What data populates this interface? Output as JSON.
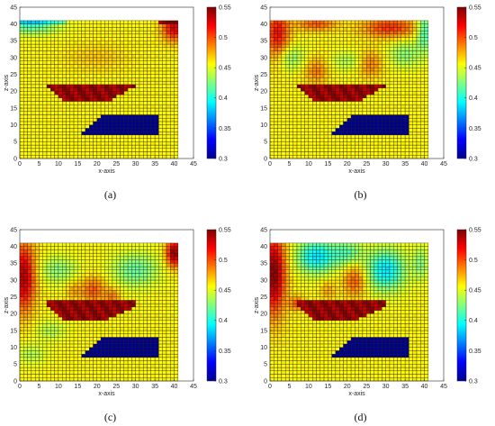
{
  "colors": {
    "high_block": "#d8120f",
    "low_block": "#0a22ee",
    "background": "#f2c61a",
    "grid_line": "#1a1a1a",
    "axis": "#262626"
  },
  "chart_data": [
    {
      "type": "heatmap",
      "caption": "(a)",
      "variant": 0,
      "xlabel": "x-axis",
      "ylabel": "z-axis",
      "xlim": [
        0,
        45
      ],
      "ylim": [
        0,
        45
      ],
      "xticks": [
        "0",
        "5",
        "10",
        "15",
        "20",
        "25",
        "30",
        "35",
        "40",
        "45"
      ],
      "yticks": [
        "0",
        "5",
        "10",
        "15",
        "20",
        "25",
        "30",
        "35",
        "40",
        "45"
      ],
      "colorbar": {
        "min": 0.3,
        "max": 0.55,
        "ticks": [
          "0.3",
          "0.35",
          "0.4",
          "0.45",
          "0.5",
          "0.55"
        ]
      },
      "grid_extent": {
        "x": [
          0,
          41
        ],
        "z": [
          0,
          41
        ]
      },
      "high_region": {
        "value": 0.54,
        "rows": [
          {
            "z": [
              21,
              22
            ],
            "x": [
              7,
              30
            ]
          },
          {
            "z": [
              20,
              21
            ],
            "x": [
              8,
              28
            ]
          },
          {
            "z": [
              19,
              20
            ],
            "x": [
              9,
              27
            ]
          },
          {
            "z": [
              18,
              19
            ],
            "x": [
              10,
              25
            ]
          },
          {
            "z": [
              17,
              18
            ],
            "x": [
              11,
              24
            ]
          }
        ]
      },
      "low_region": {
        "value": 0.3,
        "rows": [
          {
            "z": [
              12,
              13
            ],
            "x": [
              21,
              36
            ]
          },
          {
            "z": [
              11,
              12
            ],
            "x": [
              20,
              36
            ]
          },
          {
            "z": [
              10,
              11
            ],
            "x": [
              19,
              36
            ]
          },
          {
            "z": [
              9,
              10
            ],
            "x": [
              18,
              36
            ]
          },
          {
            "z": [
              8,
              9
            ],
            "x": [
              17,
              36
            ]
          },
          {
            "z": [
              7,
              8
            ],
            "x": [
              16,
              36
            ]
          }
        ]
      },
      "background_value": 0.46
    },
    {
      "type": "heatmap",
      "caption": "(b)",
      "variant": 1,
      "xlabel": "x-axis",
      "ylabel": "z-axis",
      "xlim": [
        0,
        45
      ],
      "ylim": [
        0,
        45
      ],
      "xticks": [
        "0",
        "5",
        "10",
        "15",
        "20",
        "25",
        "30",
        "35",
        "40",
        "45"
      ],
      "yticks": [
        "0",
        "5",
        "10",
        "15",
        "20",
        "25",
        "30",
        "35",
        "40",
        "45"
      ],
      "colorbar": {
        "min": 0.3,
        "max": 0.55,
        "ticks": [
          "0.3",
          "0.35",
          "0.4",
          "0.45",
          "0.5",
          "0.55"
        ]
      },
      "grid_extent": {
        "x": [
          0,
          41
        ],
        "z": [
          0,
          41
        ]
      },
      "high_region": {
        "value": 0.54,
        "rows": [
          {
            "z": [
              21,
              22
            ],
            "x": [
              7,
              30
            ]
          },
          {
            "z": [
              20,
              21
            ],
            "x": [
              8,
              28
            ]
          },
          {
            "z": [
              19,
              20
            ],
            "x": [
              9,
              27
            ]
          },
          {
            "z": [
              18,
              19
            ],
            "x": [
              10,
              25
            ]
          },
          {
            "z": [
              17,
              18
            ],
            "x": [
              11,
              24
            ]
          }
        ]
      },
      "low_region": {
        "value": 0.3,
        "rows": [
          {
            "z": [
              12,
              13
            ],
            "x": [
              21,
              36
            ]
          },
          {
            "z": [
              11,
              12
            ],
            "x": [
              20,
              36
            ]
          },
          {
            "z": [
              10,
              11
            ],
            "x": [
              19,
              36
            ]
          },
          {
            "z": [
              9,
              10
            ],
            "x": [
              18,
              36
            ]
          },
          {
            "z": [
              8,
              9
            ],
            "x": [
              17,
              36
            ]
          },
          {
            "z": [
              7,
              8
            ],
            "x": [
              16,
              36
            ]
          }
        ]
      },
      "background_value": 0.46
    },
    {
      "type": "heatmap",
      "caption": "(c)",
      "variant": 2,
      "xlabel": "x-axis",
      "ylabel": "z-axis",
      "xlim": [
        0,
        45
      ],
      "ylim": [
        0,
        45
      ],
      "xticks": [
        "0",
        "5",
        "10",
        "15",
        "20",
        "25",
        "30",
        "35",
        "40",
        "45"
      ],
      "yticks": [
        "0",
        "5",
        "10",
        "15",
        "20",
        "25",
        "30",
        "35",
        "40",
        "45"
      ],
      "colorbar": {
        "min": 0.3,
        "max": 0.55,
        "ticks": [
          "0.3",
          "0.35",
          "0.4",
          "0.45",
          "0.5",
          "0.55"
        ]
      },
      "grid_extent": {
        "x": [
          0,
          41
        ],
        "z": [
          0,
          41
        ]
      },
      "high_region": {
        "value": 0.54,
        "rows": [
          {
            "z": [
              23,
              24
            ],
            "x": [
              7,
              30
            ]
          },
          {
            "z": [
              22,
              23
            ],
            "x": [
              7,
              30
            ]
          },
          {
            "z": [
              21,
              22
            ],
            "x": [
              8,
              29
            ]
          },
          {
            "z": [
              20,
              21
            ],
            "x": [
              9,
              27
            ]
          },
          {
            "z": [
              19,
              20
            ],
            "x": [
              10,
              25
            ]
          },
          {
            "z": [
              18,
              19
            ],
            "x": [
              11,
              23
            ]
          }
        ]
      },
      "low_region": {
        "value": 0.3,
        "rows": [
          {
            "z": [
              12,
              13
            ],
            "x": [
              21,
              36
            ]
          },
          {
            "z": [
              11,
              12
            ],
            "x": [
              20,
              36
            ]
          },
          {
            "z": [
              10,
              11
            ],
            "x": [
              19,
              36
            ]
          },
          {
            "z": [
              9,
              10
            ],
            "x": [
              18,
              36
            ]
          },
          {
            "z": [
              8,
              9
            ],
            "x": [
              17,
              36
            ]
          },
          {
            "z": [
              7,
              8
            ],
            "x": [
              16,
              36
            ]
          }
        ]
      },
      "background_value": 0.46
    },
    {
      "type": "heatmap",
      "caption": "(d)",
      "variant": 3,
      "xlabel": "x-axis",
      "ylabel": "z-axis",
      "xlim": [
        0,
        45
      ],
      "ylim": [
        0,
        45
      ],
      "xticks": [
        "0",
        "5",
        "10",
        "15",
        "20",
        "25",
        "30",
        "35",
        "40",
        "45"
      ],
      "yticks": [
        "0",
        "5",
        "10",
        "15",
        "20",
        "25",
        "30",
        "35",
        "40",
        "45"
      ],
      "colorbar": {
        "min": 0.3,
        "max": 0.55,
        "ticks": [
          "0.3",
          "0.35",
          "0.4",
          "0.45",
          "0.5",
          "0.55"
        ]
      },
      "grid_extent": {
        "x": [
          0,
          41
        ],
        "z": [
          0,
          41
        ]
      },
      "high_region": {
        "value": 0.54,
        "rows": [
          {
            "z": [
              23,
              24
            ],
            "x": [
              7,
              30
            ]
          },
          {
            "z": [
              22,
              23
            ],
            "x": [
              7,
              30
            ]
          },
          {
            "z": [
              21,
              22
            ],
            "x": [
              8,
              29
            ]
          },
          {
            "z": [
              20,
              21
            ],
            "x": [
              9,
              27
            ]
          },
          {
            "z": [
              19,
              20
            ],
            "x": [
              10,
              25
            ]
          },
          {
            "z": [
              18,
              19
            ],
            "x": [
              11,
              23
            ]
          }
        ]
      },
      "low_region": {
        "value": 0.3,
        "rows": [
          {
            "z": [
              12,
              13
            ],
            "x": [
              21,
              36
            ]
          },
          {
            "z": [
              11,
              12
            ],
            "x": [
              20,
              36
            ]
          },
          {
            "z": [
              10,
              11
            ],
            "x": [
              19,
              36
            ]
          },
          {
            "z": [
              9,
              10
            ],
            "x": [
              18,
              36
            ]
          },
          {
            "z": [
              8,
              9
            ],
            "x": [
              17,
              36
            ]
          },
          {
            "z": [
              7,
              8
            ],
            "x": [
              16,
              36
            ]
          }
        ]
      },
      "background_value": 0.46
    }
  ]
}
